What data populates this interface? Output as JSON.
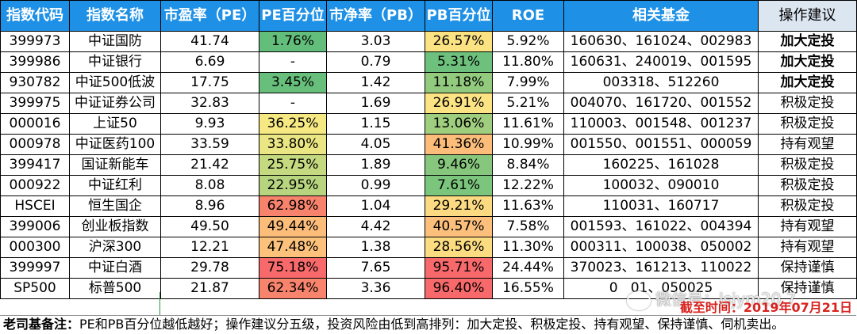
{
  "headers": [
    "指数代码",
    "指数名称",
    "市盈率（PE）",
    "PE百分位",
    "市净率（PB）",
    "PB百分位",
    "ROE",
    "相关基金",
    "操作建议"
  ],
  "colors": {
    "header_bg": "#1e90e6",
    "action_header_bg": "#dce6f1",
    "date_red": "#d9231f"
  },
  "rows": [
    {
      "code": "399973",
      "name": "中证国防",
      "pe": "41.74",
      "pe_pct": "1.76%",
      "pe_bg": "#63be7b",
      "pb": "3.03",
      "pb_pct": "26.57%",
      "pb_bg": "#fbe383",
      "roe": "5.92%",
      "funds": "160630、161024、002983",
      "action": "加大定投",
      "bold": true
    },
    {
      "code": "399986",
      "name": "中证银行",
      "pe": "6.69",
      "pe_pct": "-",
      "pe_bg": "#ffffff",
      "pb": "0.79",
      "pb_pct": "5.31%",
      "pb_bg": "#6dc17c",
      "roe": "11.80%",
      "funds": "160631、240019、001595",
      "action": "加大定投",
      "bold": true
    },
    {
      "code": "930782",
      "name": "中证500低波",
      "pe": "17.75",
      "pe_pct": "3.45%",
      "pe_bg": "#67bf7b",
      "pb": "1.42",
      "pb_pct": "11.18%",
      "pb_bg": "#93cb7e",
      "roe": "7.99%",
      "funds": "003318、512260",
      "action": "加大定投",
      "bold": true
    },
    {
      "code": "399975",
      "name": "中证证券公司",
      "pe": "32.83",
      "pe_pct": "-",
      "pe_bg": "#ffffff",
      "pb": "1.69",
      "pb_pct": "26.91%",
      "pb_bg": "#fce383",
      "roe": "5.21%",
      "funds": "004070、161720、001552",
      "action": "积极定投",
      "bold": false
    },
    {
      "code": "000016",
      "name": "上证50",
      "pe": "9.93",
      "pe_pct": "36.25%",
      "pe_bg": "#f6e984",
      "pb": "1.15",
      "pb_pct": "13.06%",
      "pb_bg": "#a0ce7f",
      "roe": "11.61%",
      "funds": "110003、001548、001237",
      "action": "积极定投",
      "bold": false
    },
    {
      "code": "000978",
      "name": "中证医药100",
      "pe": "33.59",
      "pe_pct": "33.80%",
      "pe_bg": "#eae683",
      "pb": "4.05",
      "pb_pct": "41.36%",
      "pb_bg": "#fcbd7b",
      "roe": "10.99%",
      "funds": "001550、001551、000059",
      "action": "持有观望",
      "bold": false
    },
    {
      "code": "399417",
      "name": "国证新能车",
      "pe": "21.42",
      "pe_pct": "25.75%",
      "pe_bg": "#c4d980",
      "pb": "1.89",
      "pb_pct": "9.46%",
      "pb_bg": "#87c77d",
      "roe": "8.84%",
      "funds": "160225、161028",
      "action": "积极定投",
      "bold": false
    },
    {
      "code": "000922",
      "name": "中证红利",
      "pe": "8.08",
      "pe_pct": "22.95%",
      "pe_bg": "#b7d57f",
      "pb": "0.99",
      "pb_pct": "7.61%",
      "pb_bg": "#7bc57c",
      "roe": "12.22%",
      "funds": "100032、090010",
      "action": "积极定投",
      "bold": false
    },
    {
      "code": "HSCEI",
      "name": "恒生国企",
      "pe": "8.96",
      "pe_pct": "62.98%",
      "pe_bg": "#f8836d",
      "pb": "1.04",
      "pb_pct": "29.21%",
      "pb_bg": "#fcda81",
      "roe": "11.63%",
      "funds": "110031、160717",
      "action": "积极定投",
      "bold": false
    },
    {
      "code": "399006",
      "name": "创业板指数",
      "pe": "49.50",
      "pe_pct": "49.44%",
      "pe_bg": "#fcbd7b",
      "pb": "4.42",
      "pb_pct": "40.57%",
      "pb_bg": "#fcbf7c",
      "roe": "7.58%",
      "funds": "001593、161022、004394",
      "action": "持有观望",
      "bold": false
    },
    {
      "code": "000300",
      "name": "沪深300",
      "pe": "12.21",
      "pe_pct": "47.48%",
      "pe_bg": "#fcc27c",
      "pb": "1.38",
      "pb_pct": "28.56%",
      "pb_bg": "#fcdc81",
      "roe": "11.30%",
      "funds": "000311、100038、050002",
      "action": "持有观望",
      "bold": false
    },
    {
      "code": "399997",
      "name": "中证白酒",
      "pe": "29.78",
      "pe_pct": "75.18%",
      "pe_bg": "#f8696b",
      "pb": "7.65",
      "pb_pct": "95.71%",
      "pb_bg": "#f8696b",
      "roe": "24.44%",
      "funds": "370023、161213、110022",
      "action": "保持谨慎",
      "bold": false
    },
    {
      "code": "SP500",
      "name": "标普500",
      "pe": "21.87",
      "pe_pct": "62.34%",
      "pe_bg": "#f8846d",
      "pb": "3.36",
      "pb_pct": "96.40%",
      "pb_bg": "#f8696b",
      "roe": "16.55%",
      "funds": "0   01、050025",
      "action": "保持谨慎",
      "bold": false
    }
  ],
  "date_stamp": "截至时间：2019年07月21日",
  "watermark": "微信号：lsjym20 7",
  "note_label": "老司基备注：",
  "note_text": "PE和PB百分位越低越好；操作建议分五级，投资风险由低到高排列：加大定投、积极定投、持有观望、保持谨慎、伺机卖出。"
}
